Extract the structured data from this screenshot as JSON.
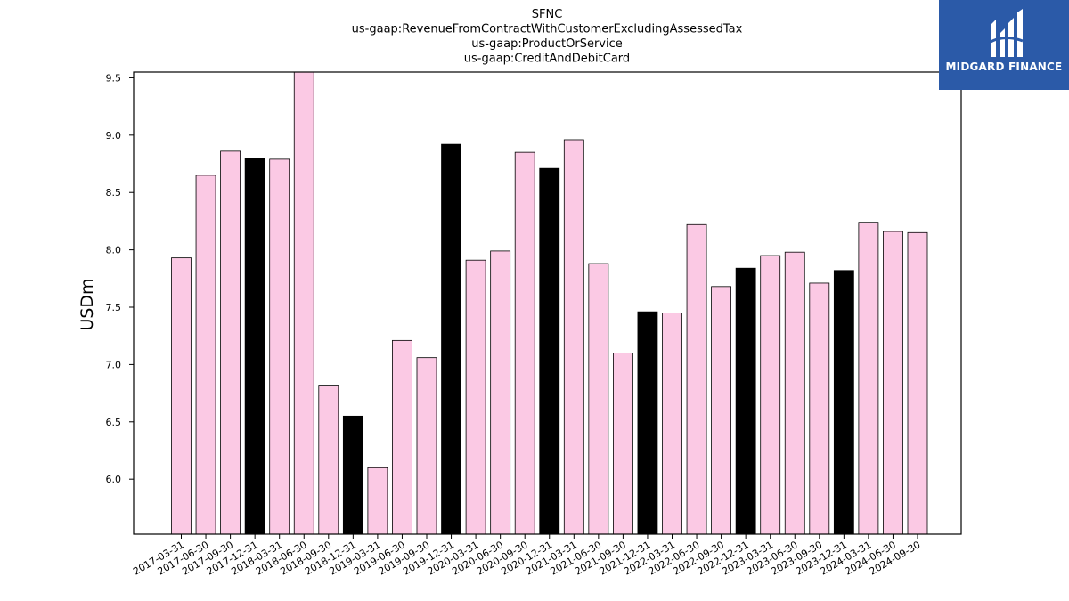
{
  "chart_data": {
    "type": "bar",
    "title_lines": [
      "SFNC",
      "us-gaap:RevenueFromContractWithCustomerExcludingAssessedTax",
      "us-gaap:ProductOrService",
      "us-gaap:CreditAndDebitCard"
    ],
    "xlabel": "",
    "ylabel": "USDm",
    "ylim": [
      5.52,
      9.55
    ],
    "yticks": [
      "6.0",
      "6.5",
      "7.0",
      "7.5",
      "8.0",
      "8.5",
      "9.0",
      "9.5"
    ],
    "categories": [
      "2017-03-31",
      "2017-06-30",
      "2017-09-30",
      "2017-12-31",
      "2018-03-31",
      "2018-06-30",
      "2018-09-30",
      "2018-12-31",
      "2019-03-31",
      "2019-06-30",
      "2019-09-30",
      "2019-12-31",
      "2020-03-31",
      "2020-06-30",
      "2020-09-30",
      "2020-12-31",
      "2021-03-31",
      "2021-06-30",
      "2021-09-30",
      "2021-12-31",
      "2022-03-31",
      "2022-06-30",
      "2022-09-30",
      "2022-12-31",
      "2023-03-31",
      "2023-06-30",
      "2023-09-30",
      "2023-12-31",
      "2024-03-31",
      "2024-06-30",
      "2024-09-30"
    ],
    "values": [
      7.93,
      8.65,
      8.86,
      8.8,
      8.79,
      9.6,
      6.82,
      6.55,
      6.1,
      7.21,
      7.06,
      8.92,
      7.91,
      7.99,
      8.85,
      8.71,
      8.96,
      7.88,
      7.1,
      7.46,
      7.45,
      8.22,
      7.68,
      7.84,
      7.95,
      7.98,
      7.71,
      7.82,
      8.24,
      8.16,
      8.15
    ],
    "bar_colors": {
      "quarter": "#fbc9e4",
      "year_end": "#000000",
      "edge": "#000000"
    },
    "grid": false,
    "legend": "none"
  },
  "logo": {
    "text": "MIDGARD FINANCE",
    "background": "#2b5aa8"
  }
}
